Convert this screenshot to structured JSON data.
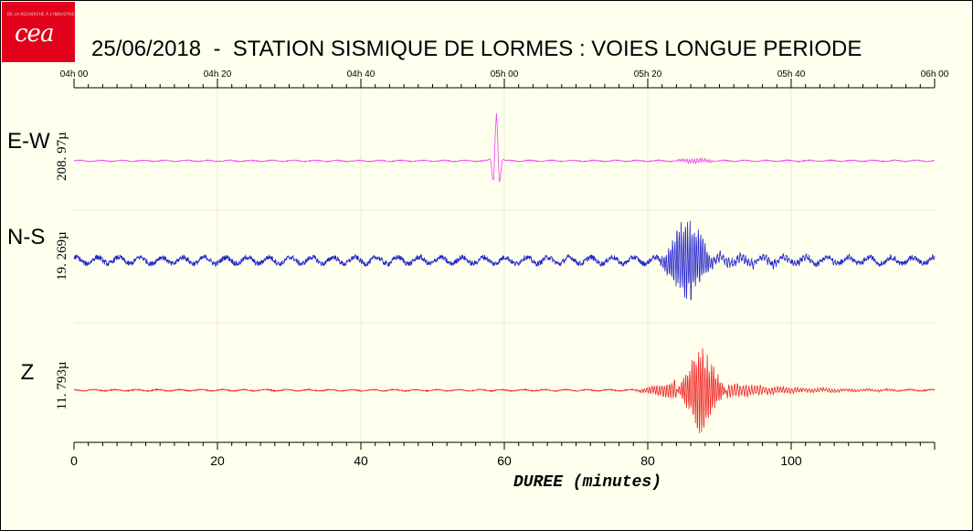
{
  "header": {
    "logo_text": "cea",
    "logo_tagline": "DE LA RECHERCHE À L'INDUSTRIE",
    "title": "25/06/2018  -  STATION SISMIQUE DE LORMES : VOIES LONGUE PERIODE"
  },
  "colors": {
    "background": "#ffffee",
    "grid": "#ece9d8",
    "logo": "#e2001a"
  },
  "chart_data": {
    "type": "line",
    "title": "25/06/2018  -  STATION SISMIQUE DE LORMES : VOIES LONGUE PERIODE",
    "xlabel": "DUREE (minutes)",
    "xlim": [
      0,
      120
    ],
    "x_ticks": [
      0,
      20,
      40,
      60,
      80,
      100
    ],
    "top_axis_ticks": [
      "04h 00",
      "04h 20",
      "04h 40",
      "05h 00",
      "05h 20",
      "05h 40",
      "06h 00"
    ],
    "grid": true,
    "series": [
      {
        "name": "E-W",
        "scale_label": "208. 97µ",
        "color": "#ee44ee",
        "noise": 0.012,
        "events": [
          {
            "t0": 56.8,
            "t1": 60.8,
            "amp": 1.0,
            "period": 1.1,
            "kind": "pulse",
            "peak": 58.9
          },
          {
            "t0": 83.0,
            "t1": 90.0,
            "amp": 0.07,
            "period": 0.35,
            "kind": "burst",
            "peak": 87.0
          }
        ]
      },
      {
        "name": "N-S",
        "scale_label": "19. 269µ",
        "color": "#2222cc",
        "noise": 0.06,
        "events": [
          {
            "t0": 81.5,
            "t1": 89.5,
            "amp": 1.0,
            "period": 0.3,
            "kind": "burst",
            "peak": 85.5
          },
          {
            "t0": 89.5,
            "t1": 120.0,
            "amp": 0.12,
            "period": 0.4,
            "kind": "coda",
            "peak": 89.5
          }
        ]
      },
      {
        "name": "Z",
        "scale_label": "11. 793µ",
        "color": "#ee2222",
        "noise": 0.012,
        "events": [
          {
            "t0": 78.0,
            "t1": 84.0,
            "amp": 0.2,
            "period": 0.35,
            "kind": "burst",
            "peak": 84.0
          },
          {
            "t0": 84.0,
            "t1": 91.0,
            "amp": 1.0,
            "period": 0.3,
            "kind": "burst",
            "peak": 87.5
          },
          {
            "t0": 91.0,
            "t1": 120.0,
            "amp": 0.15,
            "period": 0.4,
            "kind": "coda",
            "peak": 91.0
          }
        ]
      }
    ]
  }
}
